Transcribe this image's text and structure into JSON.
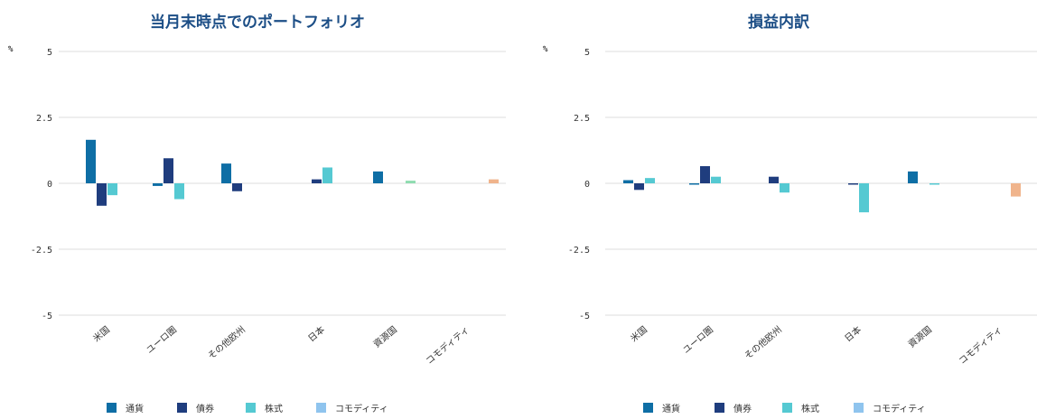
{
  "colors": {
    "currency": "#0e6ea5",
    "bond": "#1f3d7e",
    "equity": "#55c9d2",
    "commodity": "#8fc4ee",
    "extra_green": "#8fdcb0",
    "extra_orange": "#f0b48c",
    "grid": "#dddddd"
  },
  "chart_data": [
    {
      "type": "bar",
      "title": "当月末時点でのポートフォリオ",
      "ylabel": "%",
      "ylim": [
        -5,
        5
      ],
      "yticks": [
        "5",
        "2.5",
        "0",
        "-2.5",
        "-5"
      ],
      "categories": [
        "米国",
        "ユーロ圏",
        "その他欧州",
        "日本",
        "資源国",
        "コモディティ"
      ],
      "series": [
        {
          "name": "通貨",
          "color_key": "currency",
          "values": [
            1.65,
            -0.1,
            0.75,
            0,
            0.45,
            0
          ]
        },
        {
          "name": "債券",
          "color_key": "bond",
          "values": [
            -0.85,
            0.95,
            -0.3,
            0.15,
            0,
            0
          ]
        },
        {
          "name": "株式",
          "color_key": "equity",
          "values": [
            -0.45,
            -0.6,
            0,
            0.6,
            0,
            0
          ]
        },
        {
          "name": "",
          "color_key": "extra_green",
          "values": [
            0,
            0,
            0,
            0,
            0.1,
            0
          ]
        },
        {
          "name": "",
          "color_key": "extra_orange",
          "values": [
            0,
            0,
            0,
            0,
            0,
            0.15
          ]
        }
      ],
      "legend": [
        "通貨",
        "債券",
        "株式",
        "コモディティ"
      ],
      "legend_position": "bottom",
      "grid": true
    },
    {
      "type": "bar",
      "title": "損益内訳",
      "ylabel": "%",
      "ylim": [
        -5,
        5
      ],
      "yticks": [
        "5",
        "2.5",
        "0",
        "-2.5",
        "-5"
      ],
      "categories": [
        "米国",
        "ユーロ圏",
        "その他欧州",
        "日本",
        "資源国",
        "コモディティ"
      ],
      "series": [
        {
          "name": "通貨",
          "color_key": "currency",
          "values": [
            0.12,
            -0.05,
            0,
            0,
            0.45,
            0
          ]
        },
        {
          "name": "債券",
          "color_key": "bond",
          "values": [
            -0.25,
            0.65,
            0.25,
            -0.05,
            0,
            0
          ]
        },
        {
          "name": "株式",
          "color_key": "equity",
          "values": [
            0.2,
            0.25,
            -0.35,
            -1.1,
            -0.05,
            0
          ]
        },
        {
          "name": "",
          "color_key": "extra_orange",
          "values": [
            0,
            0,
            0,
            0,
            0,
            -0.5
          ]
        }
      ],
      "legend": [
        "通貨",
        "債券",
        "株式",
        "コモディティ"
      ],
      "legend_position": "bottom",
      "grid": true
    }
  ]
}
